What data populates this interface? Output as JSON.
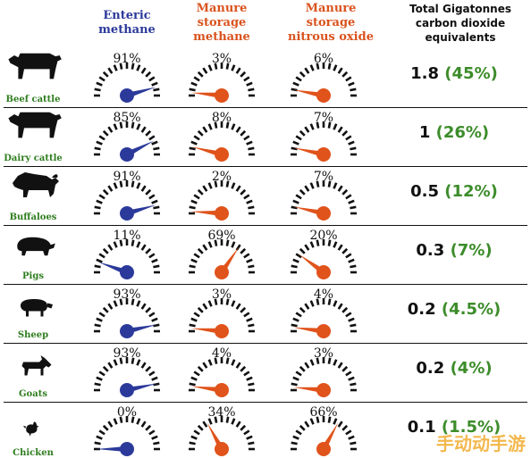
{
  "headers": {
    "enteric": [
      "Enteric",
      "methane"
    ],
    "manure_methane": [
      "Manure",
      "storage",
      "methane"
    ],
    "manure_n2o": [
      "Manure",
      "storage",
      "nitrous oxide"
    ],
    "total": [
      "Total Gigatonnes",
      "carbon dioxide",
      "equivalents"
    ]
  },
  "colors": {
    "enteric": "#2b3a9a",
    "manure": "#e0531b",
    "header_blue": "#2b3a9a",
    "header_orange": "#d9531e",
    "label_green": "#2e7d1e",
    "share_green": "#3c8c2a",
    "silhouette": "#111111"
  },
  "icons": [
    "beef-cattle-icon",
    "dairy-cattle-icon",
    "buffalo-icon",
    "pig-icon",
    "sheep-icon",
    "goat-icon",
    "chicken-icon"
  ],
  "rows": [
    {
      "animal": "Beef cattle",
      "icon": "cow",
      "enteric": "91%",
      "manure_methane": "3%",
      "manure_n2o": "6%",
      "total": "1.8",
      "share": "(45%)"
    },
    {
      "animal": "Dairy cattle",
      "icon": "cow",
      "enteric": "85%",
      "manure_methane": "8%",
      "manure_n2o": "7%",
      "total": "1",
      "share": "(26%)"
    },
    {
      "animal": "Buffaloes",
      "icon": "buffalo",
      "enteric": "91%",
      "manure_methane": "2%",
      "manure_n2o": "7%",
      "total": "0.5",
      "share": "(12%)"
    },
    {
      "animal": "Pigs",
      "icon": "pig",
      "enteric": "11%",
      "manure_methane": "69%",
      "manure_n2o": "20%",
      "total": "0.3",
      "share": "(7%)"
    },
    {
      "animal": "Sheep",
      "icon": "sheep",
      "enteric": "93%",
      "manure_methane": "3%",
      "manure_n2o": "4%",
      "total": "0.2",
      "share": "(4.5%)"
    },
    {
      "animal": "Goats",
      "icon": "goat",
      "enteric": "93%",
      "manure_methane": "4%",
      "manure_n2o": "3%",
      "total": "0.2",
      "share": "(4%)"
    },
    {
      "animal": "Chicken",
      "icon": "chicken",
      "enteric": "0%",
      "manure_methane": "34%",
      "manure_n2o": "66%",
      "total": "0.1",
      "share": "(1.5%)"
    }
  ],
  "chart_data": {
    "type": "table",
    "columns": [
      "Enteric methane",
      "Manure storage methane",
      "Manure storage nitrous oxide",
      "Total Gigatonnes carbon dioxide equivalents"
    ],
    "categories": [
      "Beef cattle",
      "Dairy cattle",
      "Buffaloes",
      "Pigs",
      "Sheep",
      "Goats",
      "Chicken"
    ],
    "series": [
      {
        "name": "Enteric methane",
        "values": [
          91,
          85,
          91,
          11,
          93,
          93,
          0
        ]
      },
      {
        "name": "Manure storage methane",
        "values": [
          3,
          8,
          2,
          69,
          3,
          4,
          34
        ]
      },
      {
        "name": "Manure storage nitrous oxide",
        "values": [
          6,
          7,
          7,
          20,
          4,
          3,
          66
        ]
      }
    ],
    "totals": [
      1.8,
      1,
      0.5,
      0.3,
      0.2,
      0.2,
      0.1
    ],
    "total_shares": [
      45,
      26,
      12,
      7,
      4.5,
      4,
      1.5
    ]
  },
  "watermark": "手动动手游"
}
